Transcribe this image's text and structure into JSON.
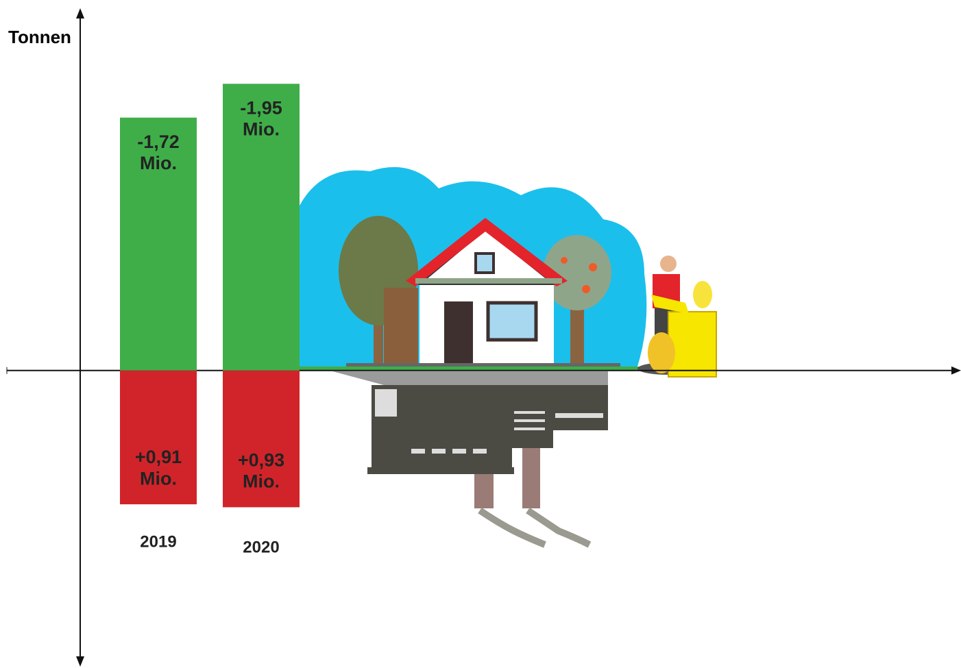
{
  "chart_data": {
    "type": "bar",
    "ylabel": "Tonnen",
    "categories": [
      "2019",
      "2020"
    ],
    "series": [
      {
        "color": "#3fae49",
        "values": [
          -1720000,
          -1950000
        ],
        "value_labels": [
          "-1,72 Mio.",
          "-1,95 Mio."
        ]
      },
      {
        "color": "#d1242a",
        "values": [
          910000,
          930000
        ],
        "value_labels": [
          "+0,91 Mio.",
          "+0,93 Mio."
        ]
      }
    ],
    "ylim": [
      2000000,
      -2450000
    ]
  }
}
